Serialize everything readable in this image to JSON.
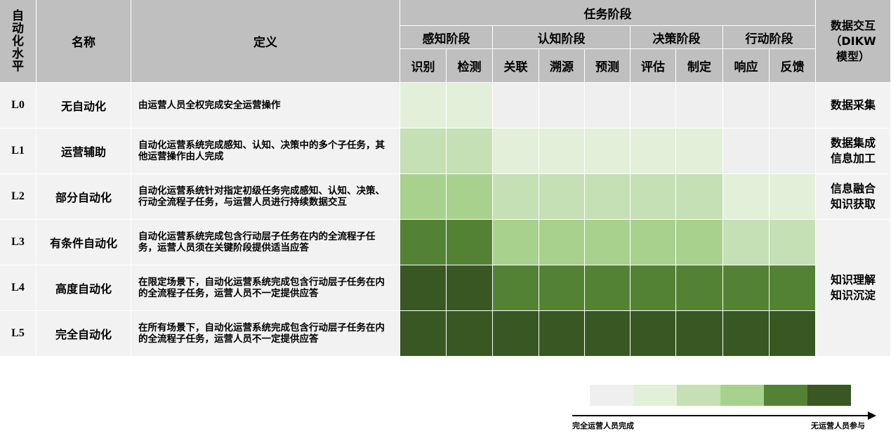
{
  "header": {
    "level": "自动化水平",
    "name": "名称",
    "definition": "定义",
    "task_stages": "任务阶段",
    "dikw": "数据交互（DIKW模型）"
  },
  "stages": [
    {
      "name": "感知阶段",
      "tasks": [
        "识别",
        "检测"
      ]
    },
    {
      "name": "认知阶段",
      "tasks": [
        "关联",
        "溯源",
        "预测"
      ]
    },
    {
      "name": "决策阶段",
      "tasks": [
        "评估",
        "制定"
      ]
    },
    {
      "name": "行动阶段",
      "tasks": [
        "响应",
        "反馈"
      ]
    }
  ],
  "rows": [
    {
      "level": "L0",
      "name": "无自动化",
      "definition": "由运营人员全权完成安全运营操作",
      "cells": [
        1,
        1,
        0,
        0,
        0,
        0,
        0,
        0,
        0
      ]
    },
    {
      "level": "L1",
      "name": "运营辅助",
      "definition": "自动化运营系统完成感知、认知、决策中的多个子任务，其他运营操作由人完成",
      "cells": [
        2,
        2,
        1,
        1,
        1,
        1,
        1,
        0,
        0
      ]
    },
    {
      "level": "L2",
      "name": "部分自动化",
      "definition": "自动化运营系统针对指定初级任务完成感知、认知、决策、行动全流程子任务，与运营人员进行持续数据交互",
      "cells": [
        3,
        3,
        2,
        2,
        2,
        2,
        2,
        1,
        1
      ]
    },
    {
      "level": "L3",
      "name": "有条件自动化",
      "definition": "自动化运营系统完成包含行动层子任务在内的全流程子任务，运营人员须在关键阶段提供适当应答",
      "cells": [
        4,
        4,
        3,
        3,
        3,
        3,
        3,
        2,
        2
      ]
    },
    {
      "level": "L4",
      "name": "高度自动化",
      "definition": "在限定场景下，自动化运营系统完成包含行动层子任务在内的全流程子任务，运营人员不一定提供应答",
      "cells": [
        5,
        5,
        4,
        4,
        4,
        4,
        4,
        4,
        4
      ]
    },
    {
      "level": "L5",
      "name": "完全自动化",
      "definition": "在所有场景下，自动化运营系统完成包含行动层子任务在内的全流程子任务，运营人员不一定提供应答",
      "cells": [
        5,
        5,
        5,
        5,
        5,
        5,
        5,
        5,
        5
      ]
    }
  ],
  "dikw": [
    "数据采集",
    "数据集成\n信息加工",
    "信息融合\n知识获取",
    "知识理解\n知识沉淀"
  ],
  "legend": {
    "colors": [
      "#efefef",
      "#e2f0d9",
      "#c5e0b4",
      "#a9d18e",
      "#548235",
      "#385723"
    ],
    "start": "完全运营人员完成",
    "end": "无运营人员参与"
  }
}
